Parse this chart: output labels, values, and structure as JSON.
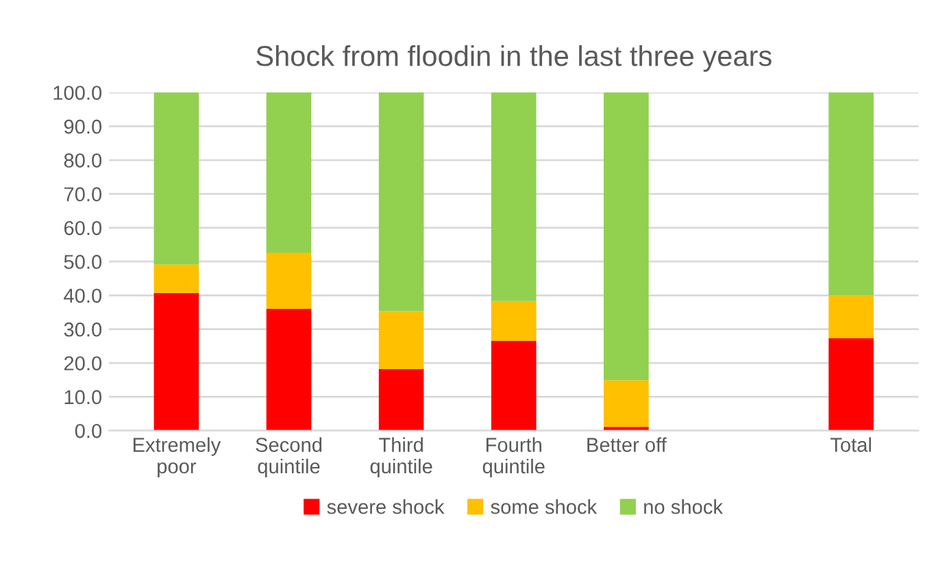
{
  "chart_data": {
    "type": "bar",
    "stacked": true,
    "title": "Shock from floodin in the last three years",
    "categories": [
      "Extremely poor",
      "Second quintile",
      "Third quintile",
      "Fourth quintile",
      "Better off",
      null,
      "Total"
    ],
    "series": [
      {
        "name": "severe shock",
        "color": "#ff0000",
        "values": [
          40.7,
          36.0,
          18.2,
          26.6,
          1.1,
          null,
          27.3
        ]
      },
      {
        "name": "some shock",
        "color": "#ffc000",
        "values": [
          8.4,
          16.6,
          17.1,
          11.7,
          13.8,
          null,
          12.7
        ]
      },
      {
        "name": "no shock",
        "color": "#92d050",
        "values": [
          50.9,
          47.4,
          64.7,
          61.7,
          85.1,
          null,
          60.0
        ]
      }
    ],
    "ylim": [
      0,
      100
    ],
    "yticks": [
      {
        "value": 0,
        "label": "0.0"
      },
      {
        "value": 10,
        "label": "10.0"
      },
      {
        "value": 20,
        "label": "20.0"
      },
      {
        "value": 30,
        "label": "30.0"
      },
      {
        "value": 40,
        "label": "40.0"
      },
      {
        "value": 50,
        "label": "50.0"
      },
      {
        "value": 60,
        "label": "60.0"
      },
      {
        "value": 70,
        "label": "70.0"
      },
      {
        "value": 80,
        "label": "80.0"
      },
      {
        "value": 90,
        "label": "90.0"
      },
      {
        "value": 100,
        "label": "100.0"
      }
    ],
    "grid": "y",
    "legend": "bottom"
  }
}
